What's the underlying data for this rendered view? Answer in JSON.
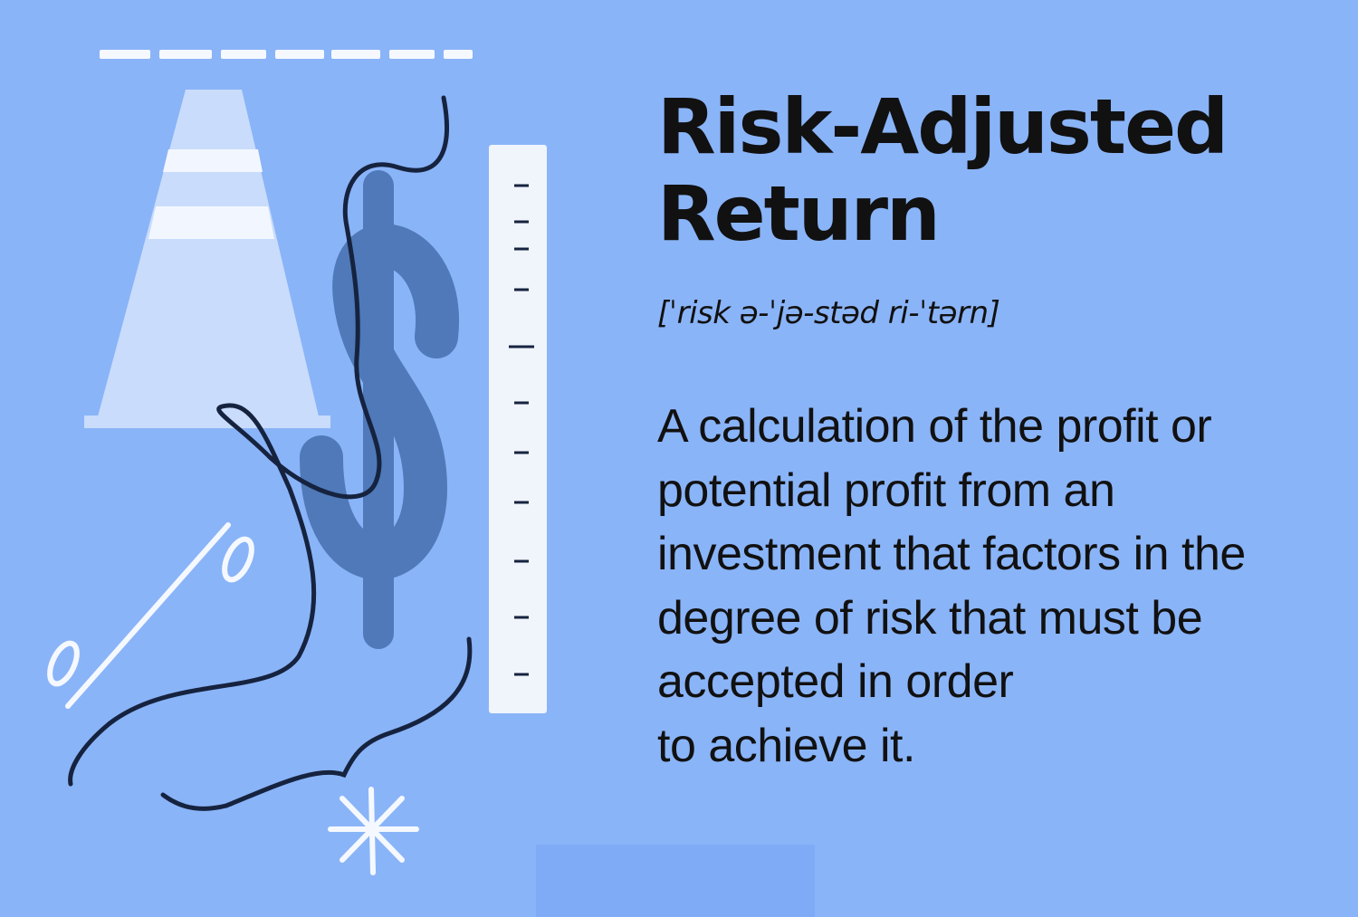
{
  "colors": {
    "background": "#8ab4f8",
    "cone": "#c9dcfb",
    "cone_stripes": "#f2f7ff",
    "dollar_sign": "#4f79b8",
    "rope": "#16233f",
    "ruler": "#f0f4fb",
    "percent_and_asterisk": "#f5f9ff",
    "text": "#111111"
  },
  "illustration": {
    "elements": [
      "dashed-line-icon",
      "traffic-cone-icon",
      "dollar-sign-icon",
      "rope-icon",
      "ruler-icon",
      "percent-sign-icon",
      "asterisk-icon"
    ]
  },
  "term": {
    "title": "Risk-Adjusted\nReturn",
    "pronunciation": "[ˈrisk ə-ˈjə-stəd ri-ˈtərn]",
    "definition": "A calculation of the profit or\npotential profit from an\ninvestment that factors in the\ndegree of risk that must be\naccepted in order\nto achieve it."
  }
}
